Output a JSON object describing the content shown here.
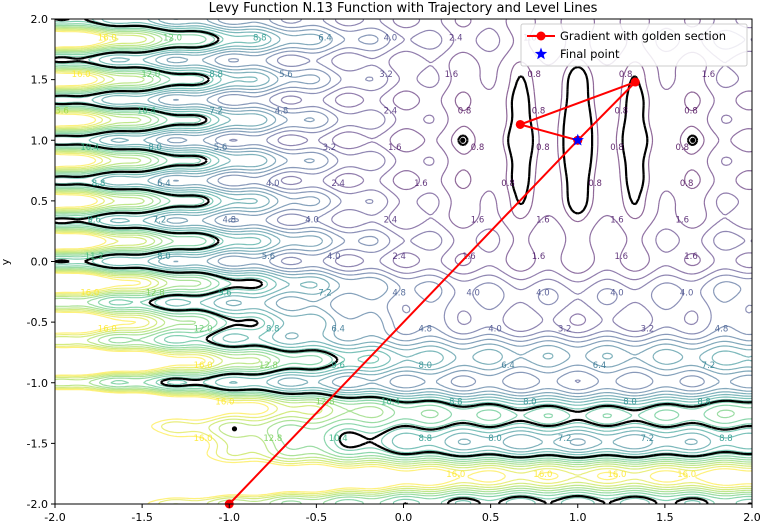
{
  "chart_data": {
    "type": "contour",
    "title": "Levy Function N.13 Function with Trajectory and Level Lines",
    "xlabel": "",
    "ylabel": "y",
    "xlim": [
      -2.0,
      2.0
    ],
    "ylim": [
      -2.0,
      2.0
    ],
    "x_ticks": [
      "-2.0",
      "-1.5",
      "-1.0",
      "-0.5",
      "0.0",
      "0.5",
      "1.0",
      "1.5",
      "2.0"
    ],
    "y_ticks": [
      "-2.0",
      "-1.5",
      "-1.0",
      "-0.5",
      "0.0",
      "0.5",
      "1.0",
      "1.5",
      "2.0"
    ],
    "contour_levels": [
      0.8,
      1.6,
      2.4,
      3.2,
      4.0,
      4.8,
      5.6,
      6.4,
      7.2,
      8.0,
      8.8,
      9.6,
      10.4,
      11.2,
      12.0,
      12.8,
      13.6,
      14.4,
      15.2,
      16.0
    ],
    "highlight_levels": [
      0.5,
      10.0
    ],
    "legend_position": "top-right",
    "series": [
      {
        "name": "Gradient with golden section",
        "color": "#ff0000",
        "marker": "circle",
        "x": [
          -1.0,
          1.0,
          1.33,
          0.67,
          1.0
        ],
        "y": [
          -2.0,
          1.0,
          1.48,
          1.13,
          1.0
        ]
      },
      {
        "name": "Final point",
        "color": "#0000ff",
        "marker": "star",
        "x": [
          1.0
        ],
        "y": [
          1.0
        ]
      }
    ],
    "colors": {
      "trajectory": "#ff0000",
      "final_point": "#0000ff",
      "level_line": "#000000",
      "colormap": "viridis"
    }
  }
}
